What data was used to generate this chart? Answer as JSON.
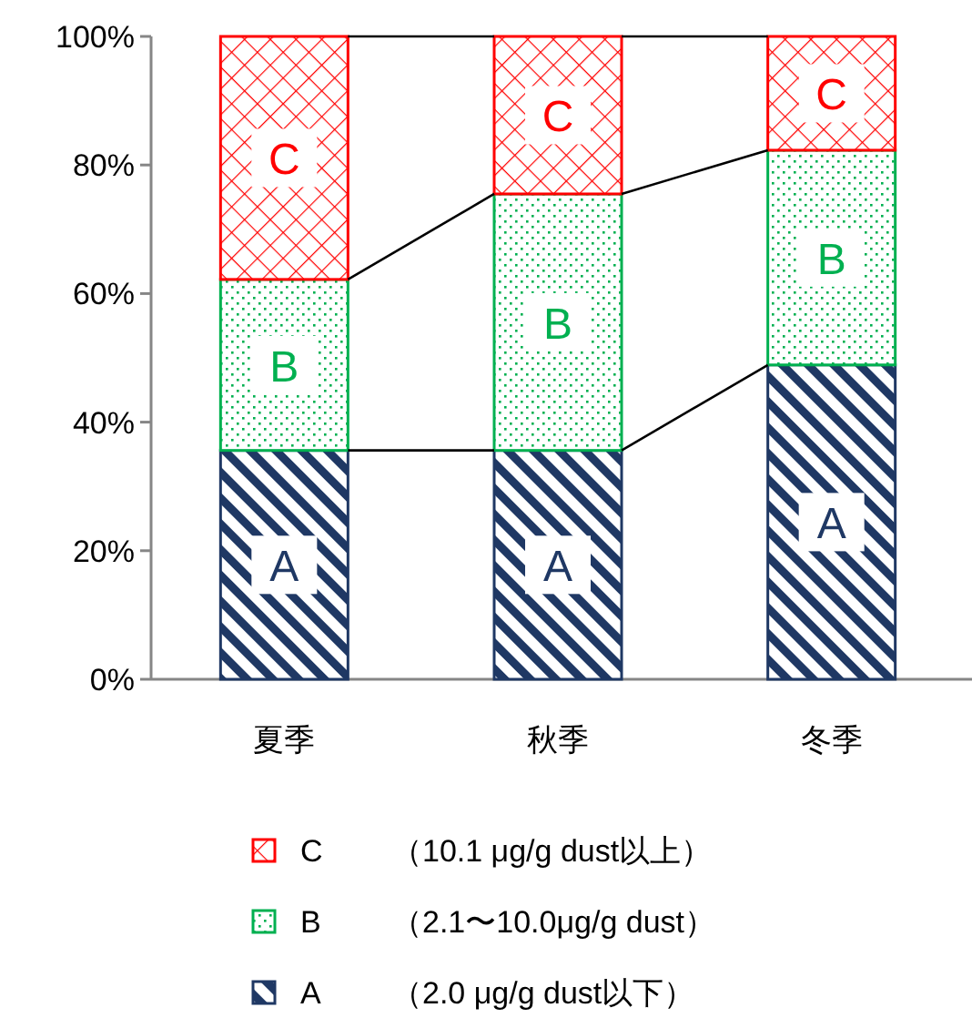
{
  "chart_data": {
    "type": "bar",
    "stacked": true,
    "categories": [
      "夏季",
      "秋季",
      "冬季"
    ],
    "series": [
      {
        "name": "A",
        "color": "#1f3864",
        "values": [
          35.6,
          35.6,
          48.9
        ]
      },
      {
        "name": "B",
        "color": "#00b050",
        "values": [
          26.6,
          39.9,
          33.4
        ]
      },
      {
        "name": "C",
        "color": "#ff0000",
        "values": [
          37.8,
          24.5,
          17.7
        ]
      }
    ],
    "annotations": [
      "（2.0 μg/g dust以下）",
      "（2.1〜10.0μg/g dust）",
      "（10.1 μg/g dust以上）"
    ],
    "ylim": [
      0,
      100
    ],
    "yticks": [
      {
        "value": 0,
        "label": "0%"
      },
      {
        "value": 20,
        "label": "20%"
      },
      {
        "value": 40,
        "label": "40%"
      },
      {
        "value": 60,
        "label": "60%"
      },
      {
        "value": 80,
        "label": "80%"
      },
      {
        "value": 100,
        "label": "100%"
      }
    ],
    "grid": false,
    "legend": "bottom"
  }
}
